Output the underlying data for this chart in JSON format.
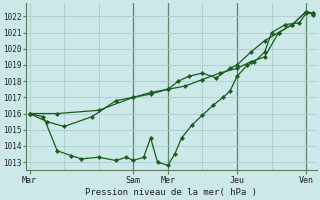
{
  "xlabel": "Pression niveau de la mer( hPa )",
  "background_color": "#cce8e8",
  "grid_color": "#aacccc",
  "line_color": "#1a5c1a",
  "ylim": [
    1012.5,
    1022.8
  ],
  "yticks": [
    1013,
    1014,
    1015,
    1016,
    1017,
    1018,
    1019,
    1020,
    1021,
    1022
  ],
  "day_labels": [
    "Mar",
    "",
    "",
    "Sam",
    "Mer",
    "",
    "Jeu",
    "",
    "Ven"
  ],
  "day_positions": [
    0,
    1,
    2,
    3,
    4,
    5,
    6,
    7,
    8
  ],
  "xtick_show": [
    "Mar",
    "Sam",
    "Mer",
    "Jeu",
    "Ven"
  ],
  "xtick_pos": [
    0,
    3,
    4,
    6,
    8
  ],
  "vline_positions": [
    3.0,
    4.0,
    6.0,
    8.0
  ],
  "xlim": [
    -0.1,
    8.3
  ],
  "series_x": [
    [
      0,
      0.4,
      0.8,
      1.2,
      1.5,
      2.0,
      2.5,
      2.8,
      3.0,
      3.3,
      3.5,
      3.7,
      4.0,
      4.2,
      4.4,
      4.7,
      5.0,
      5.3,
      5.6,
      5.8,
      6.0,
      6.3,
      6.5,
      6.8,
      7.0,
      7.4,
      7.8,
      8.0,
      8.2
    ],
    [
      0,
      0.5,
      1.0,
      1.8,
      2.5,
      3.0,
      3.5,
      4.0,
      4.3,
      4.6,
      5.0,
      5.4,
      5.8,
      6.0,
      6.4,
      6.8,
      7.2,
      7.6,
      8.0,
      8.2
    ],
    [
      0,
      0.8,
      2.0,
      3.0,
      3.5,
      4.0,
      4.5,
      5.0,
      5.5,
      6.0,
      6.4,
      6.8,
      7.2,
      7.6,
      8.0,
      8.2
    ]
  ],
  "series_y": [
    [
      1016.0,
      1015.8,
      1013.7,
      1013.4,
      1013.2,
      1013.3,
      1013.1,
      1013.3,
      1013.1,
      1013.3,
      1014.5,
      1013.0,
      1012.8,
      1013.5,
      1014.5,
      1015.3,
      1015.9,
      1016.5,
      1017.0,
      1017.4,
      1018.3,
      1019.0,
      1019.2,
      1019.8,
      1021.0,
      1021.5,
      1021.6,
      1022.2,
      1022.2
    ],
    [
      1016.0,
      1015.5,
      1015.2,
      1015.8,
      1016.8,
      1017.0,
      1017.3,
      1017.5,
      1018.0,
      1018.3,
      1018.5,
      1018.2,
      1018.8,
      1019.0,
      1019.8,
      1020.5,
      1021.0,
      1021.5,
      1022.3,
      1022.1
    ],
    [
      1016.0,
      1016.0,
      1016.2,
      1017.0,
      1017.2,
      1017.5,
      1017.7,
      1018.1,
      1018.5,
      1018.8,
      1019.2,
      1019.5,
      1021.0,
      1021.5,
      1022.3,
      1022.2
    ]
  ]
}
